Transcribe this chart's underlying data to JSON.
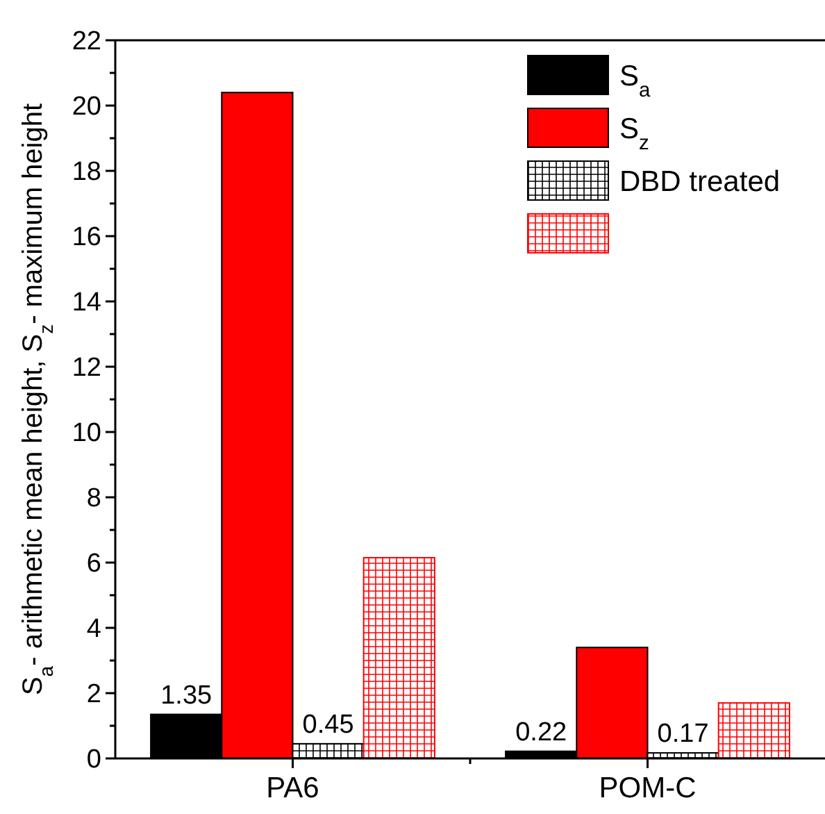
{
  "chart_data": {
    "type": "bar",
    "ylabel": "S$_{a}$- arithmetic mean height, S$_{z}$- maximum height",
    "categories": [
      "PA6",
      "POM-C"
    ],
    "series": [
      {
        "name": "S$_{a}$",
        "color": "#000000",
        "values": [
          1.35,
          0.22
        ],
        "value_labels": [
          "1.35",
          "0.22"
        ]
      },
      {
        "name": "S$_{z}$",
        "color": "#ff0000",
        "values": [
          20.4,
          3.4
        ]
      },
      {
        "name": "DBD treated",
        "color": "#000000",
        "values": [
          0.45,
          0.17
        ],
        "value_labels": [
          "0.45",
          "0.17"
        ]
      },
      {
        "color": "#ff0000",
        "values": [
          6.15,
          1.7
        ]
      }
    ],
    "ylim": [
      0,
      22
    ],
    "yticks": [
      0,
      {
        "value": 1,
        "label": null
      },
      2,
      {
        "value": 3,
        "label": null
      },
      4,
      {
        "value": 5,
        "label": null
      },
      6,
      {
        "value": 7,
        "label": null
      },
      8,
      {
        "value": 9,
        "label": null
      },
      10,
      {
        "value": 11,
        "label": null
      },
      12,
      {
        "value": 13,
        "label": null
      },
      14,
      {
        "value": 15,
        "label": null
      },
      16,
      {
        "value": 17,
        "label": null
      },
      18,
      {
        "value": 19,
        "label": null
      },
      20,
      {
        "value": 21,
        "label": null
      },
      22
    ],
    "grid": false,
    "legend": "top right"
  }
}
